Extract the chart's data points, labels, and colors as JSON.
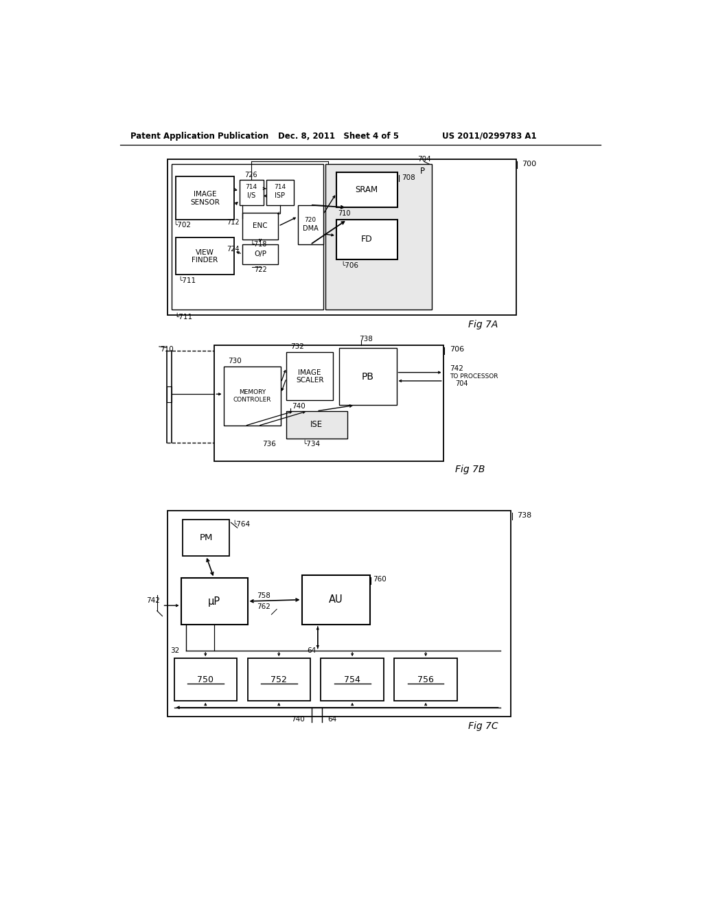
{
  "bg_color": "#ffffff",
  "header_left": "Patent Application Publication",
  "header_mid": "Dec. 8, 2011   Sheet 4 of 5",
  "header_right": "US 2011/0299783 A1",
  "fig7a_label": "Fig 7A",
  "fig7b_label": "Fig 7B",
  "fig7c_label": "Fig 7C",
  "gray_fill": "#d0d0d0",
  "white_fill": "#ffffff",
  "light_gray": "#e8e8e8"
}
